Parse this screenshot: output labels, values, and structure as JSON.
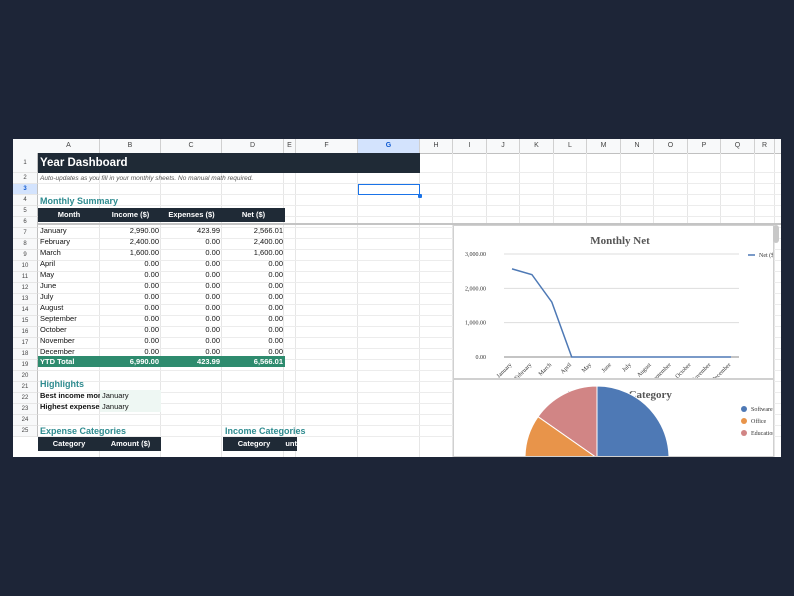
{
  "columns": [
    "A",
    "B",
    "C",
    "D",
    "E",
    "F",
    "G",
    "H",
    "I",
    "J",
    "K",
    "L",
    "M",
    "N",
    "O",
    "P",
    "Q",
    "R"
  ],
  "selected_column": "G",
  "rows": [
    "1",
    "2",
    "3",
    "4",
    "5",
    "6",
    "7",
    "8",
    "9",
    "10",
    "11",
    "12",
    "13",
    "14",
    "15",
    "16",
    "17",
    "18",
    "19",
    "20",
    "21",
    "22",
    "23",
    "24",
    "25"
  ],
  "selected_row": "3",
  "title": "Year Dashboard",
  "subtitle": "Auto-updates as you fill in your monthly sheets. No manual math required.",
  "monthly_summary": {
    "heading": "Monthly Summary",
    "headers": [
      "Month",
      "Income ($)",
      "Expenses ($)",
      "Net ($)"
    ],
    "rows": [
      [
        "January",
        "2,990.00",
        "423.99",
        "2,566.01"
      ],
      [
        "February",
        "2,400.00",
        "0.00",
        "2,400.00"
      ],
      [
        "March",
        "1,600.00",
        "0.00",
        "1,600.00"
      ],
      [
        "April",
        "0.00",
        "0.00",
        "0.00"
      ],
      [
        "May",
        "0.00",
        "0.00",
        "0.00"
      ],
      [
        "June",
        "0.00",
        "0.00",
        "0.00"
      ],
      [
        "July",
        "0.00",
        "0.00",
        "0.00"
      ],
      [
        "August",
        "0.00",
        "0.00",
        "0.00"
      ],
      [
        "September",
        "0.00",
        "0.00",
        "0.00"
      ],
      [
        "October",
        "0.00",
        "0.00",
        "0.00"
      ],
      [
        "November",
        "0.00",
        "0.00",
        "0.00"
      ],
      [
        "December",
        "0.00",
        "0.00",
        "0.00"
      ]
    ],
    "total": [
      "YTD Total",
      "6,990.00",
      "423.99",
      "6,566.01"
    ]
  },
  "highlights": {
    "heading": "Highlights",
    "rows": [
      {
        "label": "Best income month",
        "value": "January"
      },
      {
        "label": "Highest expense month",
        "value": "January"
      }
    ]
  },
  "expense_categories": {
    "heading": "Expense Categories",
    "headers": [
      "Category",
      "Amount ($)"
    ]
  },
  "income_categories": {
    "heading": "Income Categories",
    "headers": [
      "Category",
      "Amount ($)"
    ]
  },
  "colors": {
    "header_bg": "#1f2a36",
    "accent": "#2e8b8f",
    "total_bg": "#2e8b6e",
    "line": "#4e79b5",
    "selection": "#1a73e8"
  },
  "chart_data": [
    {
      "type": "line",
      "title": "Monthly Net",
      "x": [
        "January",
        "February",
        "March",
        "April",
        "May",
        "June",
        "July",
        "August",
        "September",
        "October",
        "November",
        "December"
      ],
      "y_ticks": [
        "0.00",
        "1,000.00",
        "2,000.00",
        "3,000.00"
      ],
      "ylim": [
        0,
        3000
      ],
      "grid": true,
      "legend": "top-right",
      "series": [
        {
          "name": "Net ($)",
          "values": [
            2566.01,
            2400,
            1600,
            0,
            0,
            0,
            0,
            0,
            0,
            0,
            0,
            0
          ]
        }
      ]
    },
    {
      "type": "pie",
      "title": "Expenses by Category",
      "legend": "right",
      "labels": [
        "Software",
        "Office",
        "Education"
      ],
      "colors": [
        "#4e79b5",
        "#e8944a",
        "#d18585"
      ]
    }
  ]
}
